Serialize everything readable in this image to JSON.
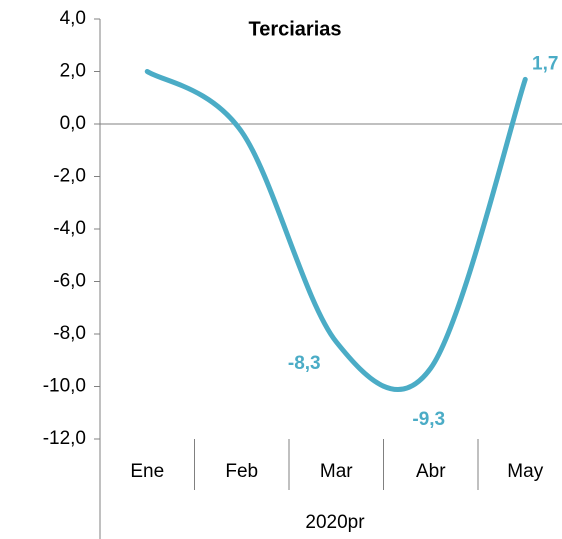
{
  "chart_data": {
    "type": "line",
    "title": "Terciarias",
    "x_label": "2020pr",
    "categories": [
      "Ene",
      "Feb",
      "Mar",
      "Abr",
      "May"
    ],
    "series": [
      {
        "name": "Terciarias",
        "color": "#4bacc6",
        "values": [
          2.0,
          -0.3,
          -8.3,
          -9.3,
          1.7
        ],
        "value_labels": [
          null,
          null,
          "-8,3",
          "-9,3",
          "1,7"
        ]
      }
    ],
    "ylim": [
      -12,
      4
    ],
    "yticks": [
      {
        "value": -12,
        "label": "-12,0"
      },
      {
        "value": -10,
        "label": "-10,0"
      },
      {
        "value": -8,
        "label": "-8,0"
      },
      {
        "value": -6,
        "label": "-6,0"
      },
      {
        "value": -4,
        "label": "-4,0"
      },
      {
        "value": -2,
        "label": "-2,0"
      },
      {
        "value": 0,
        "label": "0,0"
      },
      {
        "value": 2,
        "label": "2,0"
      },
      {
        "value": 4,
        "label": "4,0"
      }
    ],
    "smooth": true
  }
}
